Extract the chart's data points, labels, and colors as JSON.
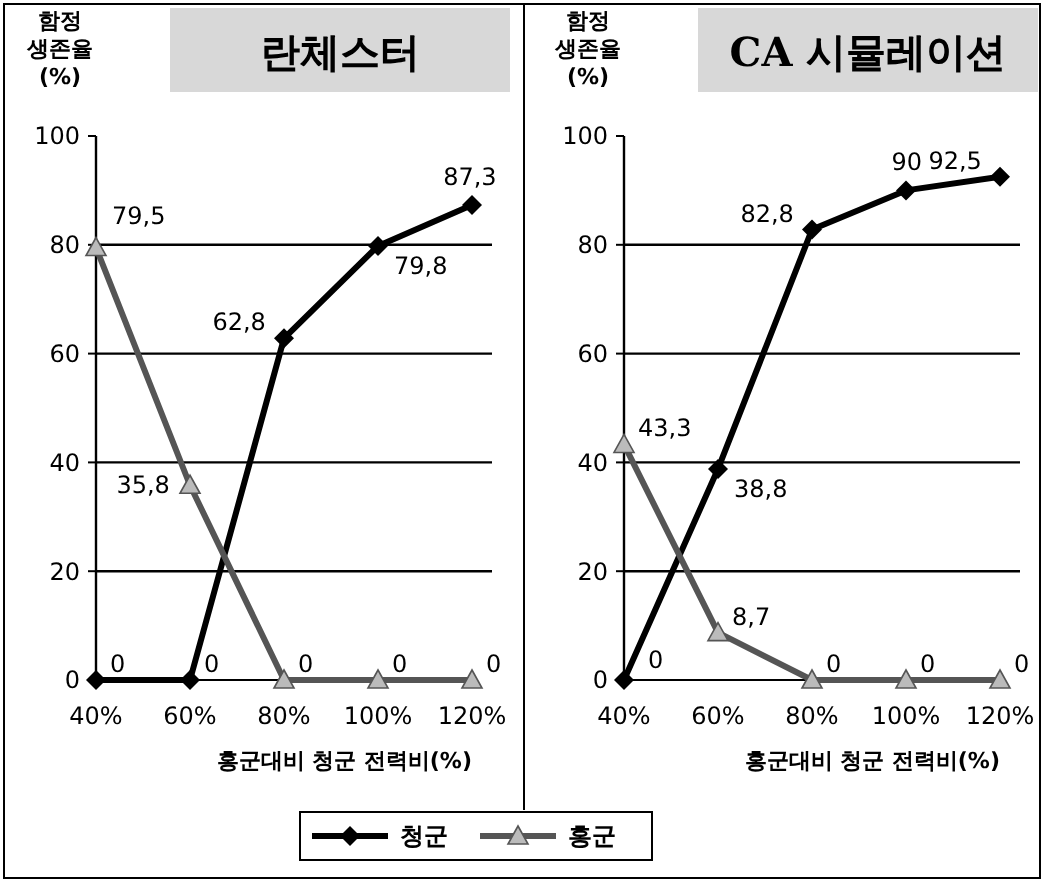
{
  "chart_data": [
    {
      "type": "line",
      "title": "란체스터",
      "ylabel": "함정\n생존율\n(%)",
      "xlabel": "홍군대비 청군 전력비(%)",
      "categories": [
        "40%",
        "60%",
        "80%",
        "100%",
        "120%"
      ],
      "ylim": [
        0,
        100
      ],
      "yticks": [
        0,
        20,
        40,
        60,
        80,
        100
      ],
      "grid": "y",
      "legend": "bottom",
      "series": [
        {
          "name": "청군",
          "color": "#000000",
          "marker": "diamond",
          "values": [
            0,
            0,
            62.8,
            79.8,
            87.3
          ],
          "value_labels": [
            "0",
            "0",
            "62,8",
            "79,8",
            "87,3"
          ]
        },
        {
          "name": "홍군",
          "color": "#555555",
          "marker": "triangle",
          "values": [
            79.5,
            35.8,
            0,
            0,
            0
          ],
          "value_labels": [
            "79,5",
            "35,8",
            "0",
            "0",
            "0"
          ]
        }
      ]
    },
    {
      "type": "line",
      "title": "CA 시뮬레이션",
      "ylabel": "함정\n생존율\n(%)",
      "xlabel": "홍군대비 청군 전력비(%)",
      "categories": [
        "40%",
        "60%",
        "80%",
        "100%",
        "120%"
      ],
      "ylim": [
        0,
        100
      ],
      "yticks": [
        0,
        20,
        40,
        60,
        80,
        100
      ],
      "grid": "y",
      "series": [
        {
          "color": "#000000",
          "marker": "diamond",
          "values": [
            0,
            38.8,
            82.8,
            90,
            92.5
          ],
          "value_labels": [
            "0",
            "38,8",
            "82,8",
            "90",
            "92,5"
          ]
        },
        {
          "color": "#555555",
          "marker": "triangle",
          "values": [
            43.3,
            8.7,
            0,
            0,
            0
          ],
          "value_labels": [
            "43,3",
            "8,7",
            "0",
            "0",
            "0"
          ]
        }
      ]
    }
  ]
}
